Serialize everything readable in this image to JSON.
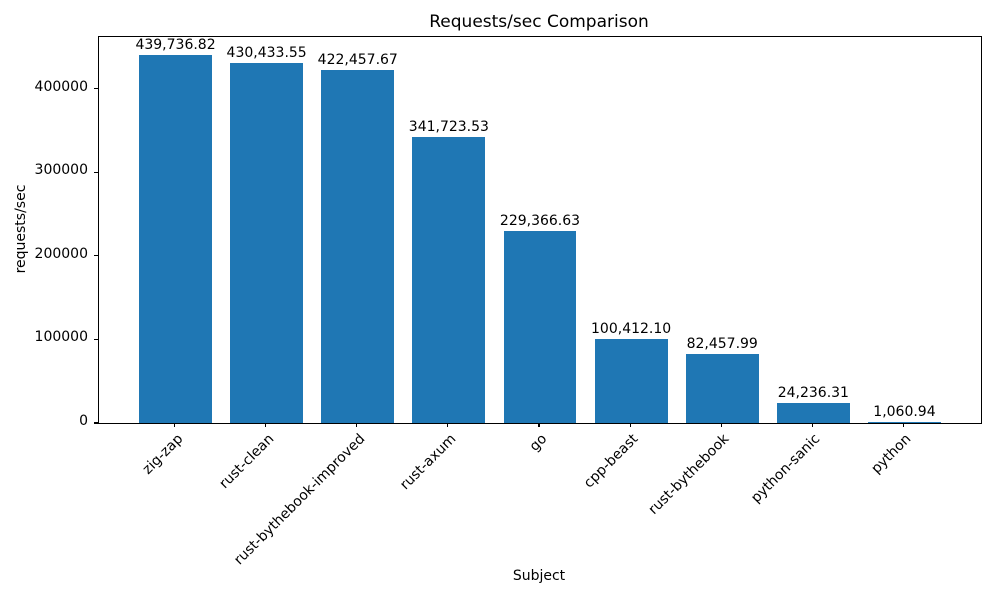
{
  "chart_data": {
    "type": "bar",
    "title": "Requests/sec Comparison",
    "xlabel": "Subject",
    "ylabel": "requests/sec",
    "categories": [
      "zig-zap",
      "rust-clean",
      "rust-bythebook-improved",
      "rust-axum",
      "go",
      "cpp-beast",
      "rust-bythebook",
      "python-sanic",
      "python"
    ],
    "values": [
      439736.82,
      430433.55,
      422457.67,
      341723.53,
      229366.63,
      100412.1,
      82457.99,
      24236.31,
      1060.94
    ],
    "value_labels": [
      "439,736.82",
      "430,433.55",
      "422,457.67",
      "341,723.53",
      "229,366.63",
      "100,412.10",
      "82,457.99",
      "24,236.31",
      "1,060.94"
    ],
    "ylim": [
      0,
      461724
    ],
    "yticks": [
      0,
      100000,
      200000,
      300000,
      400000
    ],
    "ytick_labels": [
      "0",
      "100000",
      "200000",
      "300000",
      "400000"
    ],
    "grid": false,
    "legend": "none",
    "bar_color": "#1f77b4",
    "background_color": "#ffffff"
  }
}
